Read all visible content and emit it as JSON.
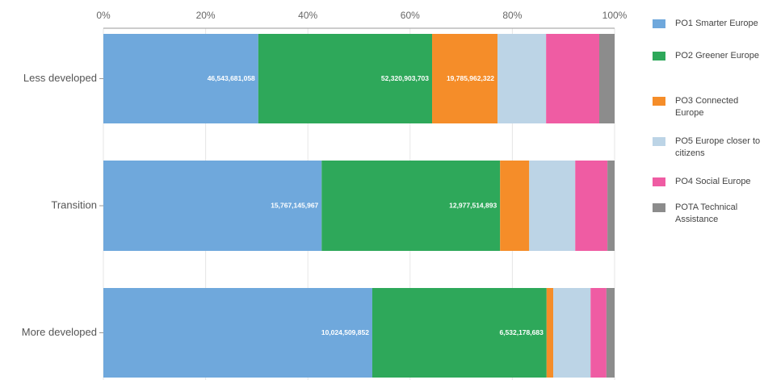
{
  "chart_data": {
    "type": "stacked_bar_horizontal",
    "categories": [
      "Less developed",
      "Transition",
      "More developed"
    ],
    "series": [
      {
        "name": "PO1 Smarter Europe",
        "color": "#6fa8dc",
        "values": [
          30.3,
          42.7,
          52.6
        ],
        "labels": [
          "46,543,681,058",
          "15,767,145,967",
          "10,024,509,852"
        ]
      },
      {
        "name": "PO2 Greener Europe",
        "color": "#2ea85a",
        "values": [
          34.0,
          34.9,
          34.1
        ],
        "labels": [
          "52,320,903,703",
          "12,977,514,893",
          "6,532,178,683"
        ]
      },
      {
        "name": "PO3 Connected Europe",
        "color": "#f58d29",
        "values": [
          12.8,
          5.7,
          1.3
        ],
        "labels": [
          "19,785,962,322",
          null,
          null
        ]
      },
      {
        "name": "PO5 Europe closer to citizens",
        "color": "#bcd4e6",
        "values": [
          9.5,
          9.0,
          7.3
        ]
      },
      {
        "name": "PO4 Social Europe",
        "color": "#ef5ca3",
        "values": [
          10.4,
          6.3,
          3.1
        ]
      },
      {
        "name": "POTA Technical Assistance",
        "color": "#8c8c8c",
        "values": [
          3.0,
          1.4,
          1.6
        ]
      }
    ],
    "xlim": [
      0,
      100
    ],
    "xticks": [
      {
        "value": 0,
        "label": "0%"
      },
      {
        "value": 20,
        "label": "20%"
      },
      {
        "value": 40,
        "label": "40%"
      },
      {
        "value": 60,
        "label": "60%"
      },
      {
        "value": 80,
        "label": "80%"
      },
      {
        "value": 100,
        "label": "100%"
      }
    ],
    "grid": true,
    "legend": "right"
  }
}
